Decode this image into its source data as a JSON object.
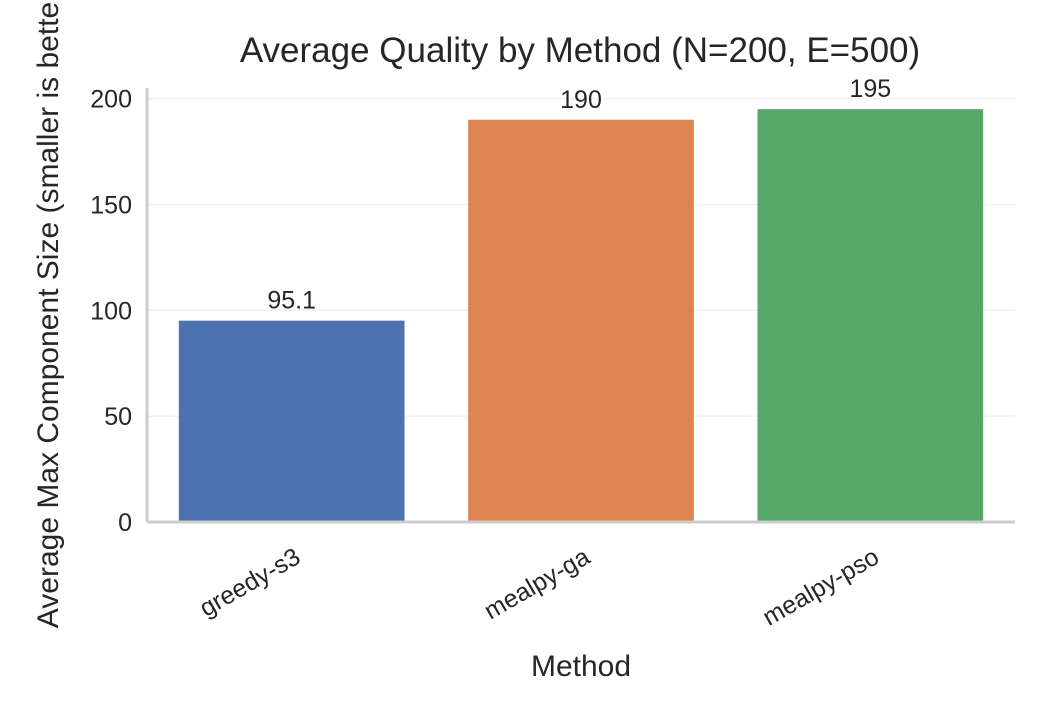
{
  "chart_data": {
    "type": "bar",
    "title": "Average Quality by Method (N=200, E=500)",
    "xlabel": "Method",
    "ylabel": "Average Max Component Size (smaller is better)",
    "categories": [
      "greedy-s3",
      "mealpy-ga",
      "mealpy-pso"
    ],
    "values": [
      95.1,
      190,
      195
    ],
    "data_labels": [
      "95.1",
      "190",
      "195"
    ],
    "colors": [
      "#4c72b0",
      "#dd8452",
      "#55a868"
    ],
    "ylim": [
      0,
      205
    ],
    "yticks": [
      0,
      50,
      100,
      150,
      200
    ],
    "grid": true,
    "legend": "none"
  }
}
